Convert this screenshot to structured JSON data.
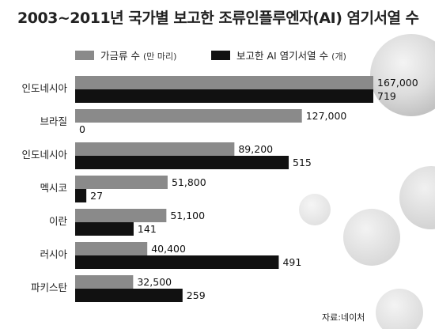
{
  "chart_data": {
    "type": "bar",
    "orientation": "horizontal",
    "title": "2003~2011년 국가별 보고한 조류인플루엔자(AI) 염기서열 수",
    "categories": [
      "인도네시아",
      "브라질",
      "인도네시아",
      "멕시코",
      "이란",
      "러시아",
      "파키스탄"
    ],
    "series": [
      {
        "name": "가금류 수",
        "unit": "(만 마리)",
        "color": "#8a8a8a",
        "values": [
          167000,
          127000,
          89200,
          51800,
          51100,
          40400,
          32500
        ],
        "labels": [
          "167,000",
          "127,000",
          "89,200",
          "51,800",
          "51,100",
          "40,400",
          "32,500"
        ]
      },
      {
        "name": "보고한 AI 염기서열 수",
        "unit": "(개)",
        "color": "#111111",
        "values": [
          719,
          0,
          515,
          27,
          141,
          491,
          259
        ],
        "labels": [
          "719",
          "0",
          "515",
          "27",
          "141",
          "491",
          "259"
        ]
      }
    ],
    "grid": false,
    "legend_position": "top",
    "source": "자료:네이처"
  }
}
